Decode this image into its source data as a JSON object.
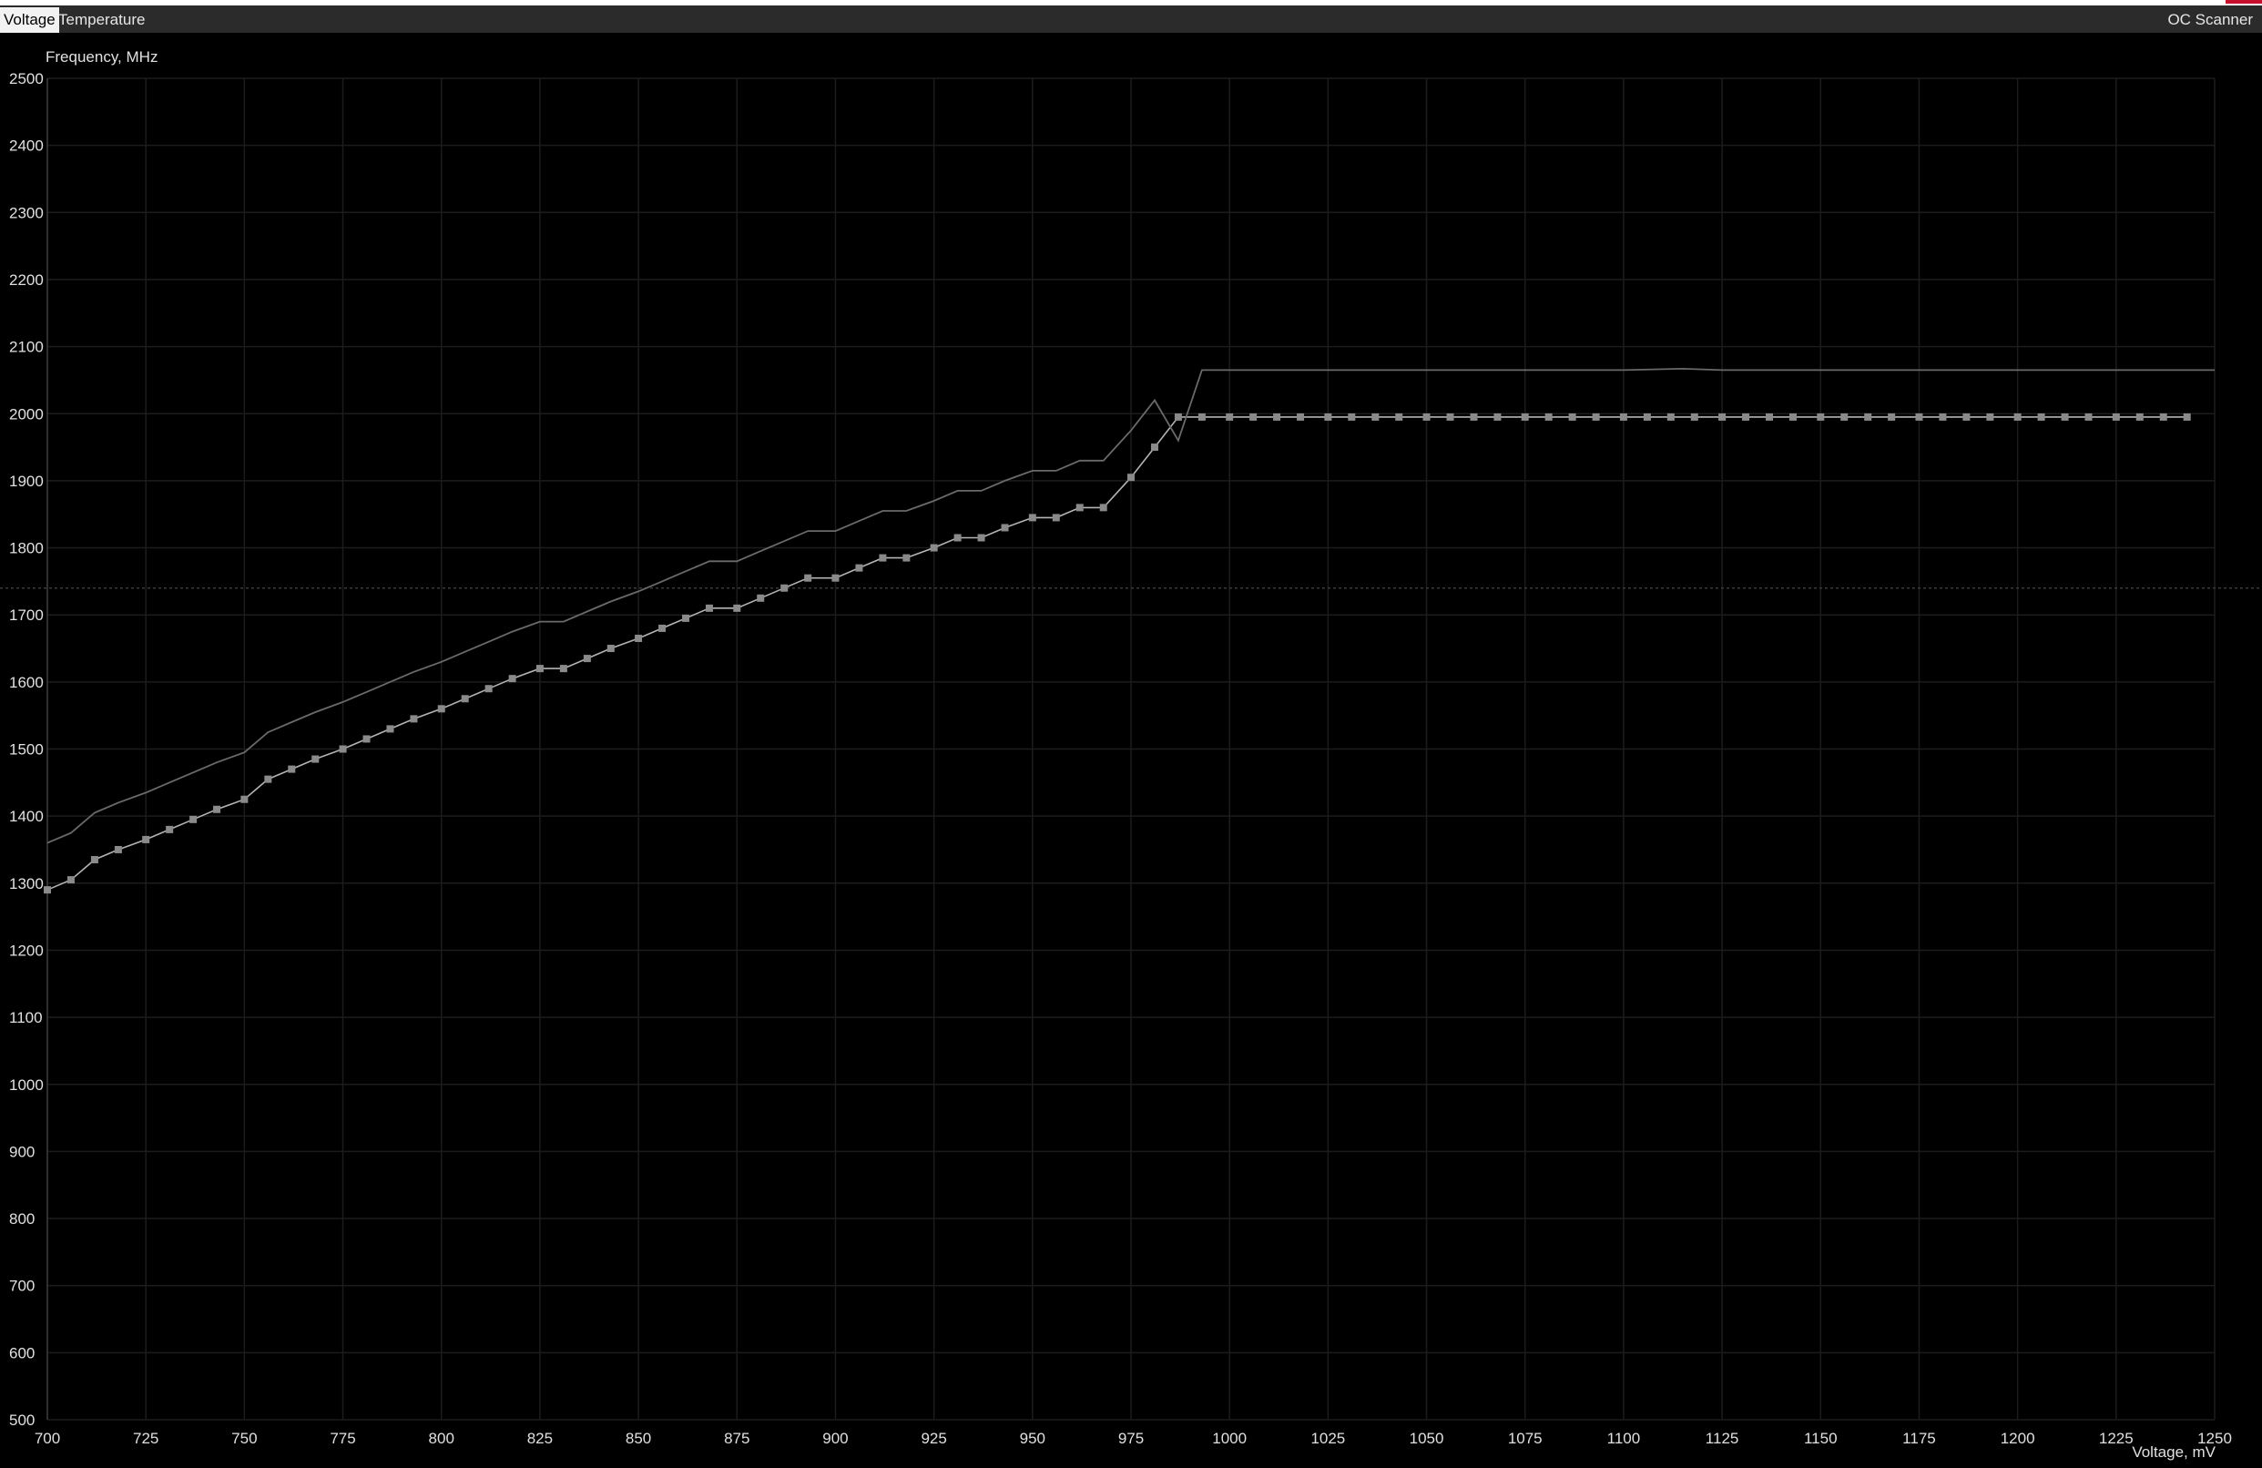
{
  "tabs": {
    "voltage_label": "Voltage",
    "temperature_label": "Temperature",
    "ocscanner_label": "OC Scanner"
  },
  "colors": {
    "background": "#000000",
    "grid": "#1c1c1c",
    "curve": "#8a8a8a",
    "curve_line": "#b4b4b4",
    "reference": "#6a6a6a",
    "limit_line": "#3a3a3a",
    "tab_active_bg": "#f2f2f2",
    "accent_red": "#c8102e"
  },
  "chart_data": {
    "type": "line",
    "ylabel": "Frequency, MHz",
    "xlabel": "Voltage, mV",
    "xlim": [
      700,
      1250
    ],
    "ylim": [
      500,
      2500
    ],
    "xticks": [
      700,
      725,
      750,
      775,
      800,
      825,
      850,
      875,
      900,
      925,
      950,
      975,
      1000,
      1025,
      1050,
      1075,
      1100,
      1125,
      1150,
      1175,
      1200,
      1225,
      1250
    ],
    "yticks": [
      500,
      600,
      700,
      800,
      900,
      1000,
      1100,
      1200,
      1300,
      1400,
      1500,
      1600,
      1700,
      1800,
      1900,
      2000,
      2100,
      2200,
      2300,
      2400,
      2500
    ],
    "grid": true,
    "reference_line": 1740,
    "series": [
      {
        "role": "curve-points",
        "markers": true,
        "x": [
          700,
          706,
          712,
          718,
          725,
          731,
          737,
          743,
          750,
          756,
          762,
          768,
          775,
          781,
          787,
          793,
          800,
          806,
          812,
          818,
          825,
          831,
          837,
          843,
          850,
          856,
          862,
          868,
          875,
          881,
          887,
          893,
          900,
          906,
          912,
          918,
          925,
          931,
          937,
          943,
          950,
          956,
          962,
          968,
          975,
          981,
          987,
          993,
          1000,
          1006,
          1012,
          1018,
          1025,
          1031,
          1037,
          1043,
          1050,
          1056,
          1062,
          1068,
          1075,
          1081,
          1087,
          1093,
          1100,
          1106,
          1112,
          1118,
          1125,
          1131,
          1137,
          1143,
          1150,
          1156,
          1162,
          1168,
          1175,
          1181,
          1187,
          1193,
          1200,
          1206,
          1212,
          1218,
          1225,
          1231,
          1237,
          1243
        ],
        "y": [
          1290,
          1305,
          1335,
          1350,
          1365,
          1380,
          1395,
          1410,
          1425,
          1455,
          1470,
          1485,
          1500,
          1515,
          1530,
          1545,
          1560,
          1575,
          1590,
          1605,
          1620,
          1620,
          1635,
          1650,
          1665,
          1680,
          1695,
          1710,
          1710,
          1725,
          1740,
          1755,
          1755,
          1770,
          1785,
          1785,
          1800,
          1815,
          1815,
          1830,
          1845,
          1845,
          1860,
          1860,
          1905,
          1950,
          1995,
          1995,
          1995,
          1995,
          1995,
          1995,
          1995,
          1995,
          1995,
          1995,
          1995,
          1995,
          1995,
          1995,
          1995,
          1995,
          1995,
          1995,
          1995,
          1995,
          1995,
          1995,
          1995,
          1995,
          1995,
          1995,
          1995,
          1995,
          1995,
          1995,
          1995,
          1995,
          1995,
          1995,
          1995,
          1995,
          1995,
          1995,
          1995,
          1995,
          1995,
          1995
        ]
      },
      {
        "role": "reference-curve",
        "markers": false,
        "x": [
          700,
          706,
          712,
          718,
          725,
          731,
          737,
          743,
          750,
          756,
          762,
          768,
          775,
          781,
          787,
          793,
          800,
          806,
          812,
          818,
          825,
          831,
          837,
          843,
          850,
          856,
          862,
          868,
          875,
          881,
          887,
          893,
          900,
          906,
          912,
          918,
          925,
          931,
          937,
          943,
          950,
          956,
          962,
          968,
          975,
          981,
          987,
          993,
          1000,
          1100,
          1115,
          1125,
          1250
        ],
        "y": [
          1360,
          1375,
          1405,
          1420,
          1435,
          1450,
          1465,
          1480,
          1495,
          1525,
          1540,
          1555,
          1570,
          1585,
          1600,
          1615,
          1630,
          1645,
          1660,
          1675,
          1690,
          1690,
          1705,
          1720,
          1735,
          1750,
          1765,
          1780,
          1780,
          1795,
          1810,
          1825,
          1825,
          1840,
          1855,
          1855,
          1870,
          1885,
          1885,
          1900,
          1915,
          1915,
          1930,
          1930,
          1975,
          2020,
          1960,
          2065,
          2065,
          2065,
          2067,
          2065,
          2065
        ]
      }
    ]
  }
}
